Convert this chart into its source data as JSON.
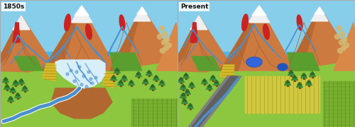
{
  "panel_titles": [
    "1850s",
    "Present"
  ],
  "sky_top": "#4db8e8",
  "sky_bottom": "#7dd0f0",
  "green_valley": "#8dc63f",
  "green_dark": "#5a9e2f",
  "mountain_main": "#cc7a40",
  "mountain_shadow": "#b86830",
  "mountain_light": "#d98848",
  "snow_white": "#f0f0f0",
  "river_blue": "#4a90cc",
  "river_white": "#c8e8f8",
  "braided_fill": "#d8eef8",
  "red_scar": "#cc2222",
  "red_scar2": "#dd3333",
  "talus_tan": "#d4b870",
  "tree_green": "#3a8c3a",
  "tree_dark": "#2a6a2a",
  "yellow_field": "#d4b82a",
  "yellow_field2": "#c8c040",
  "green_field": "#7ab030",
  "brown_fan": "#b06830",
  "road_grey": "#808080",
  "road_dark": "#606060",
  "blue_lake": "#2255bb",
  "check_dam": "#555555",
  "border_color": "#aaaaaa",
  "text_color": "#111111"
}
